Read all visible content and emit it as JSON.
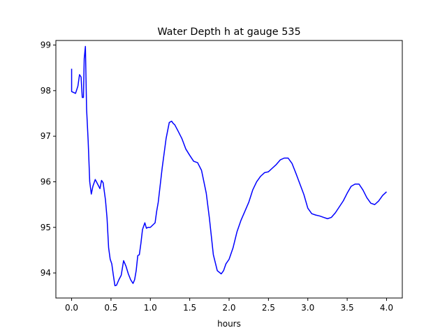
{
  "chart_data": {
    "type": "line",
    "title": "Water Depth h at gauge 535",
    "xlabel": "hours",
    "ylabel": "",
    "xlim": [
      -0.2,
      4.2
    ],
    "ylim": [
      93.45,
      99.1
    ],
    "xticks": [
      0.0,
      0.5,
      1.0,
      1.5,
      2.0,
      2.5,
      3.0,
      3.5,
      4.0
    ],
    "xtick_labels": [
      "0.0",
      "0.5",
      "1.0",
      "1.5",
      "2.0",
      "2.5",
      "3.0",
      "3.5",
      "4.0"
    ],
    "yticks": [
      94,
      95,
      96,
      97,
      98,
      99
    ],
    "ytick_labels": [
      "94",
      "95",
      "96",
      "97",
      "98",
      "99"
    ],
    "grid": false,
    "series": [
      {
        "color": "#0000ff",
        "x": [
          0.0,
          0.0,
          0.05,
          0.08,
          0.1,
          0.12,
          0.135,
          0.15,
          0.16,
          0.175,
          0.19,
          0.21,
          0.23,
          0.25,
          0.27,
          0.3,
          0.33,
          0.36,
          0.38,
          0.4,
          0.43,
          0.45,
          0.47,
          0.49,
          0.51,
          0.53,
          0.55,
          0.57,
          0.6,
          0.63,
          0.66,
          0.69,
          0.72,
          0.75,
          0.78,
          0.8,
          0.82,
          0.84,
          0.86,
          0.88,
          0.9,
          0.93,
          0.95,
          0.97,
          1.0,
          1.03,
          1.06,
          1.08,
          1.1,
          1.15,
          1.2,
          1.24,
          1.27,
          1.29,
          1.31,
          1.35,
          1.4,
          1.45,
          1.5,
          1.55,
          1.6,
          1.65,
          1.68,
          1.71,
          1.75,
          1.8,
          1.85,
          1.9,
          1.93,
          1.96,
          2.0,
          2.05,
          2.1,
          2.15,
          2.2,
          2.25,
          2.3,
          2.35,
          2.4,
          2.45,
          2.5,
          2.55,
          2.6,
          2.65,
          2.7,
          2.75,
          2.8,
          2.85,
          2.9,
          2.95,
          3.0,
          3.05,
          3.1,
          3.15,
          3.2,
          3.25,
          3.3,
          3.35,
          3.4,
          3.45,
          3.5,
          3.55,
          3.6,
          3.65,
          3.7,
          3.75,
          3.8,
          3.85,
          3.9,
          3.95,
          4.0
        ],
        "y": [
          98.48,
          97.98,
          97.94,
          98.1,
          98.35,
          98.3,
          97.85,
          97.85,
          98.7,
          98.97,
          97.6,
          96.9,
          96.0,
          95.73,
          95.9,
          96.05,
          95.95,
          95.85,
          96.03,
          95.98,
          95.6,
          95.2,
          94.55,
          94.3,
          94.2,
          93.95,
          93.72,
          93.73,
          93.85,
          93.95,
          94.27,
          94.15,
          93.98,
          93.85,
          93.77,
          93.85,
          94.05,
          94.38,
          94.4,
          94.65,
          94.95,
          95.1,
          94.98,
          95.0,
          95.0,
          95.05,
          95.1,
          95.35,
          95.55,
          96.3,
          96.95,
          97.3,
          97.33,
          97.28,
          97.25,
          97.12,
          96.95,
          96.72,
          96.58,
          96.45,
          96.42,
          96.25,
          96.0,
          95.75,
          95.2,
          94.4,
          94.05,
          93.98,
          94.05,
          94.2,
          94.3,
          94.55,
          94.9,
          95.15,
          95.35,
          95.55,
          95.82,
          96.0,
          96.12,
          96.2,
          96.22,
          96.3,
          96.38,
          96.48,
          96.52,
          96.52,
          96.4,
          96.18,
          95.95,
          95.72,
          95.42,
          95.3,
          95.27,
          95.25,
          95.22,
          95.19,
          95.22,
          95.32,
          95.45,
          95.58,
          95.75,
          95.9,
          95.95,
          95.95,
          95.82,
          95.65,
          95.53,
          95.5,
          95.58,
          95.7,
          95.78
        ]
      }
    ]
  }
}
